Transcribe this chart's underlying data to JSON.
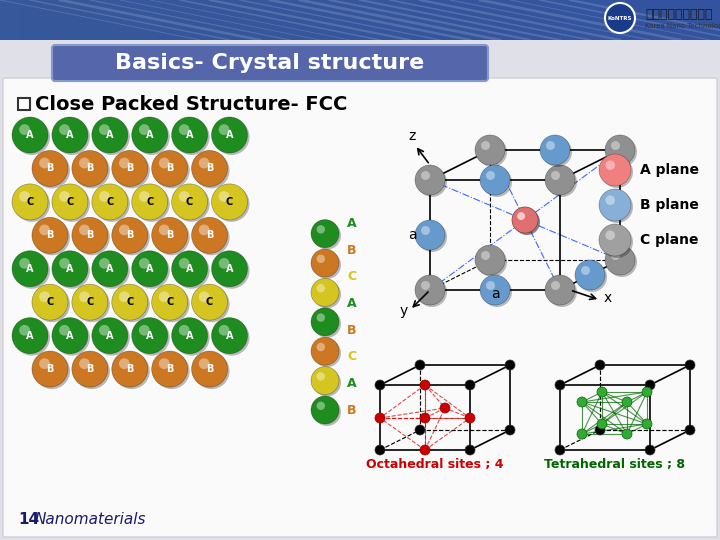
{
  "title": "Basics- Crystal structure",
  "subtitle": "Close Packed Structure- FCC",
  "page_num": "14",
  "page_label": "Nanomaterials",
  "bg_color": "#e8e8e8",
  "header_bg": "#4a5a8a",
  "title_color": "#ffffff",
  "title_fontsize": 16,
  "legend_items": [
    {
      "label": "A plane",
      "color": "#f08080"
    },
    {
      "label": "B plane",
      "color": "#87afd7"
    },
    {
      "label": "C plane",
      "color": "#a0a0a0"
    }
  ],
  "octahedral_label": "Octahedral sites ; 4",
  "tetrahedral_label": "Tetrahedral sites ; 8",
  "octahedral_color": "#cc0000",
  "tetrahedral_color": "#006600",
  "logo_text": "나노기술연구협의회",
  "logo_sub": "Korea Nano Technology Research Society",
  "kontrs_color": "#1a3a8a"
}
